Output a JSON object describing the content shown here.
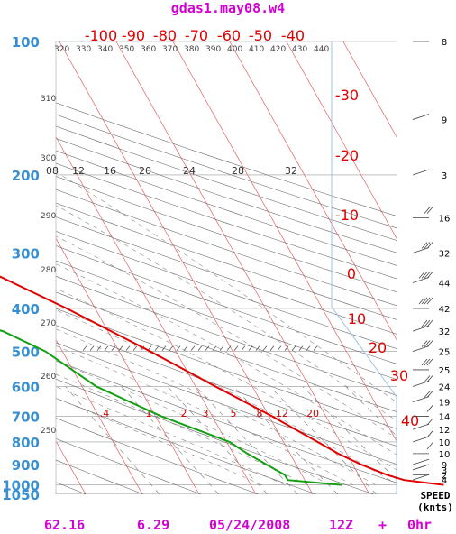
{
  "title": "gdas1.may08.w4",
  "footer": {
    "left": "62.16",
    "mid": "6.29",
    "date": "05/24/2008",
    "time": "12Z",
    "plus": "+",
    "offset": "0hr"
  },
  "speed_label": [
    "SPEED",
    "(knts)"
  ],
  "colors": {
    "temperature": "#e00000",
    "dewpoint": "#12a012",
    "isotherm": "#e06060",
    "dry_adiabat": "#666666",
    "moist_adiabat": "#888888",
    "mixing_ratio": "#aaaaaa",
    "pressure_label": "#3a8fd0",
    "title": "#d400d4",
    "boundary": "#9ec3e0"
  },
  "chart_data": {
    "type": "line",
    "subtype": "skew-t log-p diagram",
    "y_axis": {
      "quantity": "pressure (hPa)",
      "scale": "log",
      "range": [
        1050,
        100
      ],
      "tick_labels": [
        "100",
        "200",
        "300",
        "400",
        "500",
        "600",
        "700",
        "800",
        "900",
        "1000",
        "1050"
      ]
    },
    "isotherm_labels": [
      "-100",
      "-90",
      "-80",
      "-70",
      "-60",
      "-50",
      "-40",
      "-30",
      "-20",
      "-10",
      "0",
      "10",
      "20",
      "30",
      "40"
    ],
    "potential_temperature_labels": [
      "320",
      "330",
      "340",
      "350",
      "360",
      "370",
      "380",
      "390",
      "400",
      "410",
      "420",
      "430",
      "440",
      "310",
      "300",
      "290",
      "280",
      "270",
      "260",
      "250"
    ],
    "mixing_ratio_labels": [
      ".4",
      "1",
      "2",
      "3",
      "5",
      "8",
      "12",
      "20"
    ],
    "wetbulb_labels": [
      "08",
      "12",
      "16",
      "20",
      "24",
      "28",
      "32"
    ],
    "temperature_profile": {
      "name": "temperature",
      "points": [
        {
          "p": 1000,
          "t": 24.0
        },
        {
          "p": 975,
          "t": 17.5
        },
        {
          "p": 950,
          "t": 15.0
        },
        {
          "p": 900,
          "t": 11.5
        },
        {
          "p": 850,
          "t": 8.5
        },
        {
          "p": 800,
          "t": 6.0
        },
        {
          "p": 700,
          "t": 0.5
        },
        {
          "p": 600,
          "t": -6.5
        },
        {
          "p": 500,
          "t": -14.5
        },
        {
          "p": 400,
          "t": -25.0
        },
        {
          "p": 300,
          "t": -40.0
        },
        {
          "p": 250,
          "t": -49.0
        },
        {
          "p": 200,
          "t": -53.5
        },
        {
          "p": 150,
          "t": -58.0
        },
        {
          "p": 100,
          "t": -68.5
        }
      ]
    },
    "dewpoint_profile": {
      "name": "dewpoint",
      "points": [
        {
          "p": 1000,
          "t": 6.0
        },
        {
          "p": 975,
          "t": -3.0
        },
        {
          "p": 950,
          "t": -3.0
        },
        {
          "p": 850,
          "t": -7.5
        },
        {
          "p": 800,
          "t": -9.5
        },
        {
          "p": 700,
          "t": -19.0
        },
        {
          "p": 600,
          "t": -27.5
        },
        {
          "p": 500,
          "t": -33.0
        },
        {
          "p": 450,
          "t": -38.5
        },
        {
          "p": 400,
          "t": -52.0
        },
        {
          "p": 300,
          "t": -55.5
        },
        {
          "p": 250,
          "t": -64.0
        },
        {
          "p": 200,
          "t": -65.0
        }
      ]
    },
    "wind_speeds_knots": [
      {
        "p": 100,
        "speed": 8
      },
      {
        "p": 150,
        "speed": 9
      },
      {
        "p": 200,
        "speed": 3
      },
      {
        "p": 250,
        "speed": 16
      },
      {
        "p": 300,
        "speed": 32
      },
      {
        "p": 350,
        "speed": 44
      },
      {
        "p": 400,
        "speed": 42
      },
      {
        "p": 450,
        "speed": 32
      },
      {
        "p": 500,
        "speed": 25
      },
      {
        "p": 550,
        "speed": 25
      },
      {
        "p": 600,
        "speed": 24
      },
      {
        "p": 650,
        "speed": 19
      },
      {
        "p": 700,
        "speed": 14
      },
      {
        "p": 750,
        "speed": 12
      },
      {
        "p": 800,
        "speed": 10
      },
      {
        "p": 850,
        "speed": 10
      },
      {
        "p": 900,
        "speed": 9
      },
      {
        "p": 925,
        "speed": 3
      },
      {
        "p": 950,
        "speed": 2
      },
      {
        "p": 975,
        "speed": 4
      }
    ],
    "legend": "none",
    "grid": true
  }
}
